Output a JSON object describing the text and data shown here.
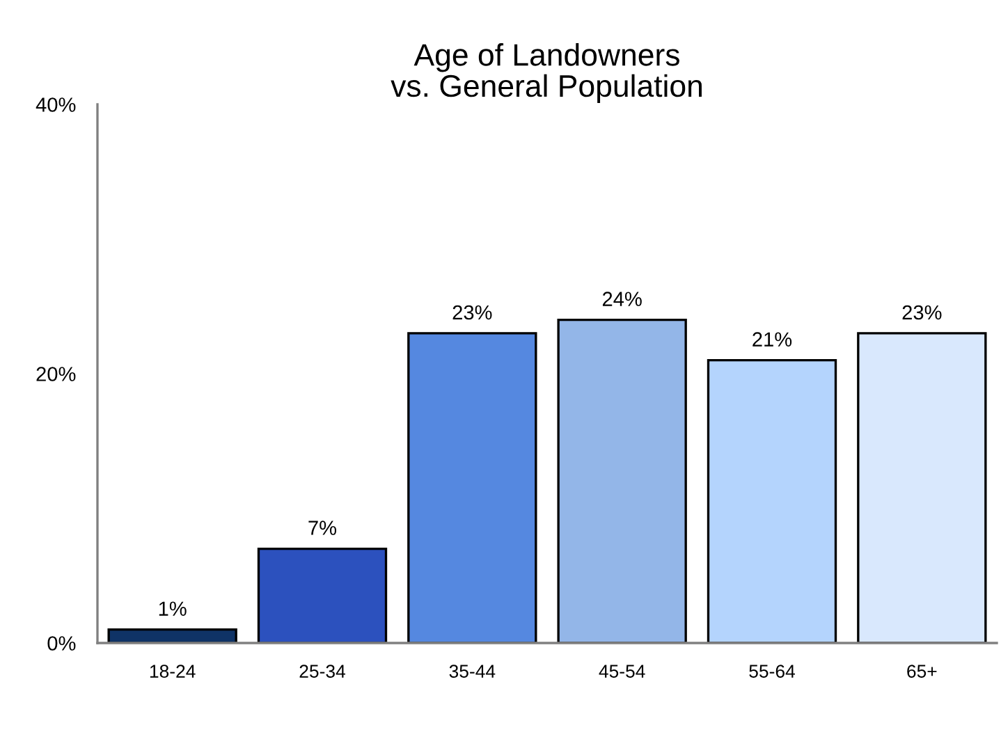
{
  "chart_data": {
    "type": "bar",
    "title": "Age of Landowners\nvs. General Population",
    "categories": [
      "18-24",
      "25-34",
      "35-44",
      "45-54",
      "55-64",
      "65+"
    ],
    "values": [
      1,
      7,
      23,
      24,
      21,
      23
    ],
    "colors": [
      "#0f3366",
      "#2c51be",
      "#5588e0",
      "#93b6e8",
      "#b4d4fd",
      "#d9e8fd"
    ],
    "value_labels": [
      "1%",
      "7%",
      "23%",
      "24%",
      "21%",
      "23%"
    ],
    "ylim": [
      0,
      40
    ],
    "yticks": [
      {
        "value": 0,
        "label": "0%"
      },
      {
        "value": 20,
        "label": "20%"
      },
      {
        "value": 40,
        "label": "40%"
      }
    ],
    "grid": false
  }
}
